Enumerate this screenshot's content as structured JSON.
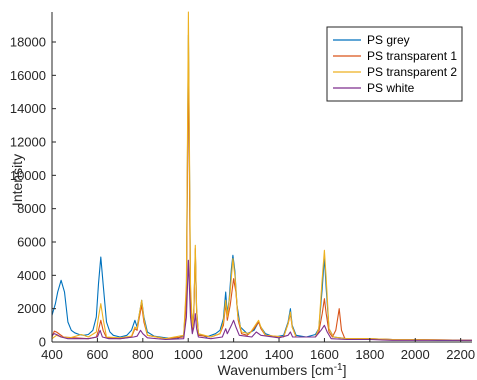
{
  "chart_data": {
    "type": "line",
    "xlabel": "Wavenumbers [cm",
    "xlabel_sup": "-1",
    "xlabel_end": "]",
    "ylabel": "Intensity",
    "xlim": [
      400,
      2250
    ],
    "ylim": [
      0,
      19800
    ],
    "xticks": [
      400,
      600,
      800,
      1000,
      1200,
      1400,
      1600,
      1800,
      2000,
      2200
    ],
    "xtick_labels": [
      "400",
      "600",
      "800",
      "1000",
      "1200",
      "1400",
      "1600",
      "1800",
      "2000",
      "2200"
    ],
    "yticks": [
      0,
      2000,
      4000,
      6000,
      8000,
      10000,
      12000,
      14000,
      16000,
      18000
    ],
    "ytick_labels": [
      "0",
      "2000",
      "4000",
      "6000",
      "8000",
      "10000",
      "12000",
      "14000",
      "16000",
      "18000"
    ],
    "legend_position": "top-right",
    "series": [
      {
        "name": "PS grey",
        "color": "#0072BD",
        "points": [
          [
            400,
            1600
          ],
          [
            415,
            2300
          ],
          [
            425,
            3000
          ],
          [
            440,
            3700
          ],
          [
            455,
            3000
          ],
          [
            470,
            1200
          ],
          [
            485,
            700
          ],
          [
            500,
            550
          ],
          [
            520,
            450
          ],
          [
            540,
            400
          ],
          [
            560,
            450
          ],
          [
            580,
            700
          ],
          [
            595,
            1500
          ],
          [
            605,
            3500
          ],
          [
            615,
            5100
          ],
          [
            625,
            3500
          ],
          [
            640,
            1200
          ],
          [
            655,
            600
          ],
          [
            670,
            400
          ],
          [
            700,
            300
          ],
          [
            730,
            400
          ],
          [
            750,
            700
          ],
          [
            765,
            1300
          ],
          [
            775,
            900
          ],
          [
            785,
            1700
          ],
          [
            795,
            2500
          ],
          [
            805,
            1500
          ],
          [
            820,
            600
          ],
          [
            850,
            350
          ],
          [
            900,
            250
          ],
          [
            950,
            200
          ],
          [
            980,
            400
          ],
          [
            992,
            3000
          ],
          [
            1001,
            18400
          ],
          [
            1010,
            3000
          ],
          [
            1018,
            800
          ],
          [
            1025,
            2000
          ],
          [
            1031,
            5400
          ],
          [
            1037,
            2000
          ],
          [
            1045,
            500
          ],
          [
            1080,
            300
          ],
          [
            1120,
            500
          ],
          [
            1140,
            700
          ],
          [
            1155,
            1400
          ],
          [
            1165,
            3000
          ],
          [
            1172,
            1700
          ],
          [
            1180,
            2500
          ],
          [
            1190,
            4400
          ],
          [
            1197,
            5200
          ],
          [
            1205,
            4300
          ],
          [
            1215,
            2200
          ],
          [
            1230,
            900
          ],
          [
            1260,
            500
          ],
          [
            1290,
            700
          ],
          [
            1310,
            1200
          ],
          [
            1320,
            900
          ],
          [
            1340,
            500
          ],
          [
            1380,
            300
          ],
          [
            1420,
            400
          ],
          [
            1440,
            1200
          ],
          [
            1450,
            2000
          ],
          [
            1458,
            1000
          ],
          [
            1475,
            400
          ],
          [
            1520,
            300
          ],
          [
            1560,
            450
          ],
          [
            1575,
            800
          ],
          [
            1590,
            3200
          ],
          [
            1600,
            5100
          ],
          [
            1608,
            3200
          ],
          [
            1620,
            800
          ],
          [
            1640,
            300
          ],
          [
            1700,
            200
          ],
          [
            1800,
            200
          ],
          [
            1900,
            150
          ],
          [
            2000,
            150
          ],
          [
            2100,
            100
          ],
          [
            2250,
            100
          ]
        ]
      },
      {
        "name": "PS transparent 1",
        "color": "#D95319",
        "points": [
          [
            400,
            300
          ],
          [
            410,
            650
          ],
          [
            420,
            600
          ],
          [
            435,
            450
          ],
          [
            450,
            300
          ],
          [
            500,
            250
          ],
          [
            560,
            200
          ],
          [
            595,
            300
          ],
          [
            605,
            700
          ],
          [
            615,
            1300
          ],
          [
            625,
            700
          ],
          [
            640,
            250
          ],
          [
            700,
            200
          ],
          [
            750,
            300
          ],
          [
            765,
            800
          ],
          [
            775,
            700
          ],
          [
            785,
            1500
          ],
          [
            795,
            2200
          ],
          [
            805,
            1200
          ],
          [
            820,
            400
          ],
          [
            900,
            200
          ],
          [
            980,
            300
          ],
          [
            992,
            2500
          ],
          [
            1001,
            17000
          ],
          [
            1010,
            2500
          ],
          [
            1018,
            600
          ],
          [
            1025,
            1800
          ],
          [
            1031,
            5600
          ],
          [
            1037,
            1800
          ],
          [
            1045,
            400
          ],
          [
            1100,
            300
          ],
          [
            1140,
            500
          ],
          [
            1155,
            1000
          ],
          [
            1165,
            2300
          ],
          [
            1172,
            1300
          ],
          [
            1185,
            2200
          ],
          [
            1200,
            3800
          ],
          [
            1210,
            3000
          ],
          [
            1220,
            1300
          ],
          [
            1235,
            500
          ],
          [
            1260,
            400
          ],
          [
            1290,
            800
          ],
          [
            1310,
            1200
          ],
          [
            1320,
            800
          ],
          [
            1340,
            400
          ],
          [
            1420,
            300
          ],
          [
            1440,
            1100
          ],
          [
            1450,
            1700
          ],
          [
            1458,
            900
          ],
          [
            1475,
            300
          ],
          [
            1560,
            300
          ],
          [
            1575,
            600
          ],
          [
            1590,
            1700
          ],
          [
            1600,
            2600
          ],
          [
            1608,
            1700
          ],
          [
            1620,
            600
          ],
          [
            1635,
            300
          ],
          [
            1650,
            700
          ],
          [
            1665,
            2000
          ],
          [
            1675,
            700
          ],
          [
            1690,
            200
          ],
          [
            1800,
            200
          ],
          [
            1900,
            150
          ],
          [
            2000,
            150
          ],
          [
            2250,
            100
          ]
        ]
      },
      {
        "name": "PS transparent 2",
        "color": "#EDB120",
        "points": [
          [
            400,
            200
          ],
          [
            420,
            400
          ],
          [
            440,
            300
          ],
          [
            480,
            250
          ],
          [
            530,
            450
          ],
          [
            560,
            300
          ],
          [
            595,
            600
          ],
          [
            605,
            1500
          ],
          [
            615,
            2300
          ],
          [
            625,
            1400
          ],
          [
            640,
            300
          ],
          [
            700,
            250
          ],
          [
            750,
            350
          ],
          [
            765,
            900
          ],
          [
            775,
            800
          ],
          [
            785,
            1700
          ],
          [
            795,
            2500
          ],
          [
            805,
            1400
          ],
          [
            820,
            400
          ],
          [
            900,
            200
          ],
          [
            980,
            400
          ],
          [
            992,
            3500
          ],
          [
            1001,
            19800
          ],
          [
            1010,
            3500
          ],
          [
            1018,
            900
          ],
          [
            1025,
            2000
          ],
          [
            1031,
            5800
          ],
          [
            1037,
            2000
          ],
          [
            1045,
            500
          ],
          [
            1100,
            300
          ],
          [
            1140,
            500
          ],
          [
            1155,
            1200
          ],
          [
            1165,
            2500
          ],
          [
            1172,
            1500
          ],
          [
            1185,
            3000
          ],
          [
            1197,
            5000
          ],
          [
            1207,
            3800
          ],
          [
            1218,
            1600
          ],
          [
            1235,
            600
          ],
          [
            1270,
            500
          ],
          [
            1290,
            900
          ],
          [
            1310,
            1300
          ],
          [
            1320,
            900
          ],
          [
            1340,
            400
          ],
          [
            1420,
            300
          ],
          [
            1440,
            1100
          ],
          [
            1450,
            1800
          ],
          [
            1458,
            900
          ],
          [
            1475,
            300
          ],
          [
            1560,
            300
          ],
          [
            1575,
            800
          ],
          [
            1590,
            3800
          ],
          [
            1600,
            5500
          ],
          [
            1608,
            3800
          ],
          [
            1620,
            800
          ],
          [
            1640,
            300
          ],
          [
            1700,
            200
          ],
          [
            1800,
            200
          ],
          [
            1900,
            150
          ],
          [
            2000,
            150
          ],
          [
            2250,
            100
          ]
        ]
      },
      {
        "name": "PS white",
        "color": "#7E2F8E",
        "points": [
          [
            400,
            400
          ],
          [
            410,
            500
          ],
          [
            420,
            450
          ],
          [
            440,
            300
          ],
          [
            470,
            200
          ],
          [
            560,
            200
          ],
          [
            600,
            300
          ],
          [
            612,
            700
          ],
          [
            622,
            300
          ],
          [
            650,
            200
          ],
          [
            700,
            200
          ],
          [
            760,
            300
          ],
          [
            775,
            350
          ],
          [
            790,
            700
          ],
          [
            800,
            500
          ],
          [
            820,
            250
          ],
          [
            900,
            150
          ],
          [
            980,
            200
          ],
          [
            992,
            1500
          ],
          [
            1001,
            4900
          ],
          [
            1010,
            1500
          ],
          [
            1018,
            500
          ],
          [
            1025,
            900
          ],
          [
            1031,
            1700
          ],
          [
            1037,
            800
          ],
          [
            1045,
            300
          ],
          [
            1100,
            200
          ],
          [
            1150,
            300
          ],
          [
            1165,
            800
          ],
          [
            1172,
            500
          ],
          [
            1190,
            1000
          ],
          [
            1200,
            1300
          ],
          [
            1210,
            900
          ],
          [
            1225,
            400
          ],
          [
            1280,
            300
          ],
          [
            1300,
            600
          ],
          [
            1320,
            400
          ],
          [
            1400,
            250
          ],
          [
            1440,
            400
          ],
          [
            1450,
            600
          ],
          [
            1460,
            300
          ],
          [
            1560,
            300
          ],
          [
            1585,
            700
          ],
          [
            1600,
            1000
          ],
          [
            1612,
            600
          ],
          [
            1630,
            200
          ],
          [
            1700,
            150
          ],
          [
            1800,
            150
          ],
          [
            1900,
            100
          ],
          [
            2000,
            100
          ],
          [
            2250,
            100
          ]
        ]
      }
    ]
  }
}
